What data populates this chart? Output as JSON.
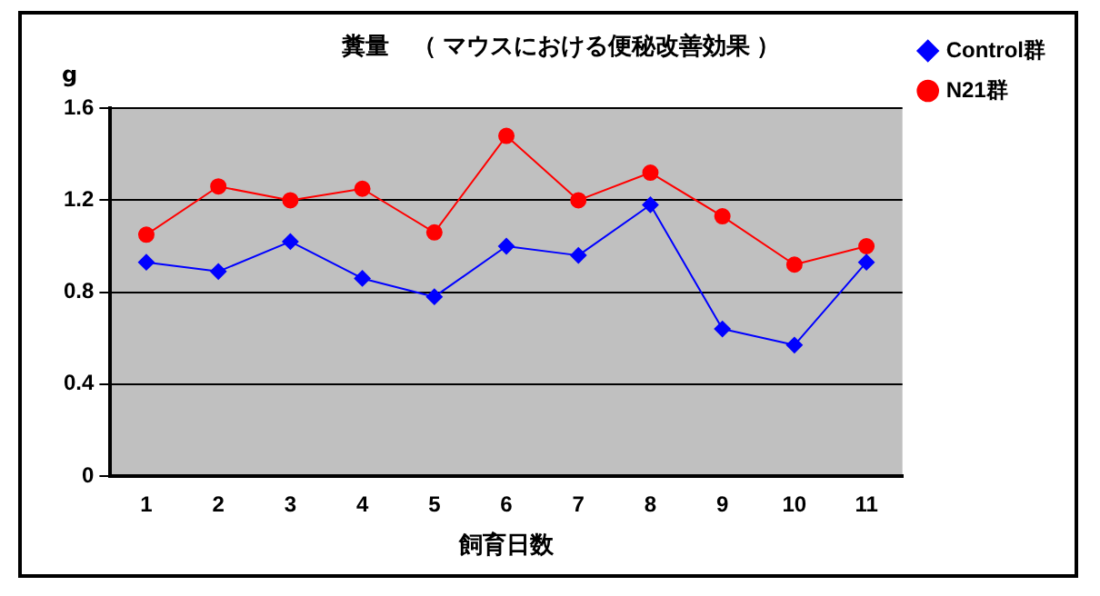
{
  "chart_data": {
    "type": "line",
    "title": "糞量　（ マウスにおける便秘改善効果 ）",
    "xlabel": "飼育日数",
    "ylabel": "g",
    "categories": [
      "1",
      "2",
      "3",
      "4",
      "5",
      "6",
      "7",
      "8",
      "9",
      "10",
      "11"
    ],
    "series": [
      {
        "name": "Control群",
        "color": "#0000ff",
        "marker": "diamond",
        "values": [
          0.93,
          0.89,
          1.02,
          0.86,
          0.78,
          1.0,
          0.96,
          1.18,
          0.64,
          0.57,
          0.93
        ]
      },
      {
        "name": "N21群",
        "color": "#ff0000",
        "marker": "circle",
        "values": [
          1.05,
          1.26,
          1.2,
          1.25,
          1.06,
          1.48,
          1.2,
          1.32,
          1.13,
          0.92,
          1.0
        ]
      }
    ],
    "ylim": [
      0,
      1.6
    ],
    "yticks": [
      0,
      0.4,
      0.8,
      1.2,
      1.6
    ],
    "grid": "y",
    "legend": "right"
  }
}
